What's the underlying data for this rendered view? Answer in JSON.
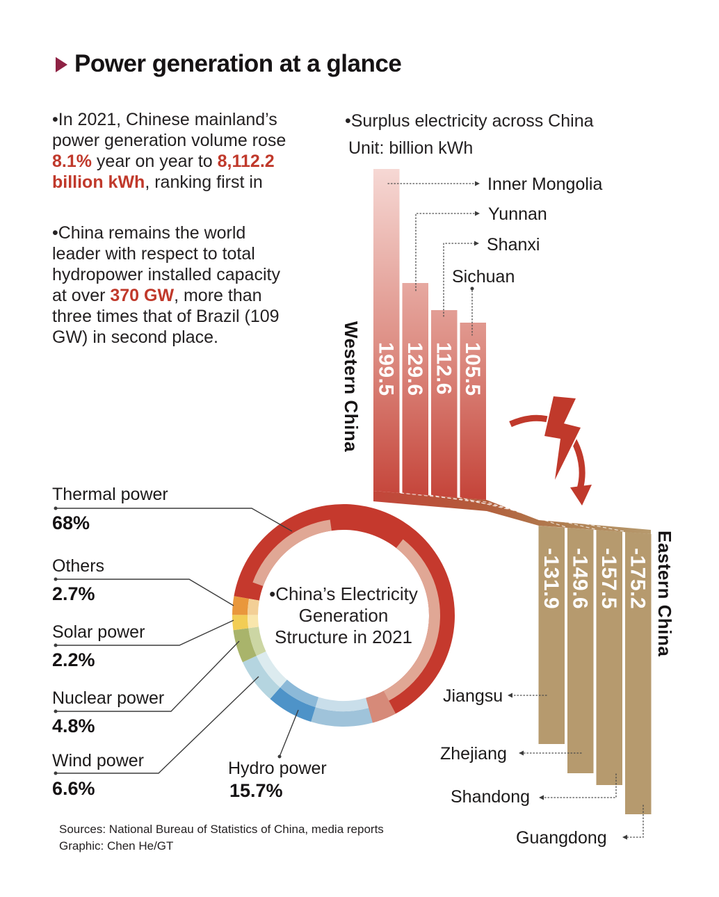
{
  "header": {
    "title": "Power generation at a glance",
    "arrow_color": "#8e2244"
  },
  "paragraphs": {
    "p1": {
      "lines": [
        [
          {
            "t": "•In 2021, Chinese mainland’s",
            "hl": false
          }
        ],
        [
          {
            "t": "power generation volume rose",
            "hl": false
          }
        ],
        [
          {
            "t": "8.1%",
            "hl": true
          },
          {
            "t": " year on year to ",
            "hl": false
          },
          {
            "t": "8,112.2",
            "hl": true
          }
        ],
        [
          {
            "t": "billion kWh",
            "hl": true
          },
          {
            "t": ", ranking first in",
            "hl": false
          }
        ]
      ]
    },
    "p2": {
      "lines": [
        [
          {
            "t": "•China remains the world",
            "hl": false
          }
        ],
        [
          {
            "t": "leader with respect to total",
            "hl": false
          }
        ],
        [
          {
            "t": "hydropower installed capacity",
            "hl": false
          }
        ],
        [
          {
            "t": "at over ",
            "hl": false
          },
          {
            "t": "370 GW",
            "hl": true
          },
          {
            "t": ", more than",
            "hl": false
          }
        ],
        [
          {
            "t": "three times that of Brazil (109",
            "hl": false
          }
        ],
        [
          {
            "t": "GW) in second place.",
            "hl": false
          }
        ]
      ]
    }
  },
  "bar_section": {
    "title": "•Surplus electricity across China",
    "unit": "Unit: billion kWh",
    "west_label": "Western China",
    "east_label": "Eastern China"
  },
  "chart_data": [
    {
      "type": "bar",
      "name": "surplus-west",
      "unit": "billion kWh",
      "categories": [
        "Inner Mongolia",
        "Yunnan",
        "Shanxi",
        "Sichuan"
      ],
      "values": [
        199.5,
        129.6,
        112.6,
        105.5
      ],
      "bar_color_top": "#f6d8d4",
      "bar_color_bottom": "#c5453a"
    },
    {
      "type": "bar",
      "name": "deficit-east",
      "unit": "billion kWh",
      "categories": [
        "Jiangsu",
        "Zhejiang",
        "Shandong",
        "Guangdong"
      ],
      "values": [
        -131.9,
        -149.6,
        -157.5,
        -175.2
      ],
      "bar_color": "#b69a6e"
    },
    {
      "type": "pie",
      "name": "electricity-structure",
      "center_lines": [
        "•China’s Electricity",
        "Generation",
        "Structure in 2021"
      ],
      "slices": [
        {
          "label": "Thermal power",
          "pct": "68%",
          "value": 68,
          "color": "#c5392d"
        },
        {
          "label": "Others",
          "pct": "2.7%",
          "value": 2.7,
          "color": "#e9973c"
        },
        {
          "label": "Solar power",
          "pct": "2.2%",
          "value": 2.2,
          "color": "#f2cd55"
        },
        {
          "label": "Nuclear power",
          "pct": "4.8%",
          "value": 4.8,
          "color": "#a9b46b"
        },
        {
          "label": "Wind power",
          "pct": "6.6%",
          "value": 6.6,
          "color": "#b5d5e0"
        },
        {
          "label": "Hydro power",
          "pct": "15.7%",
          "value": 15.7,
          "color": "#4e93c8"
        }
      ]
    }
  ],
  "footer": {
    "sources": "Sources: National Bureau of Statistics of China, media reports",
    "credit": "Graphic: Chen He/GT"
  }
}
